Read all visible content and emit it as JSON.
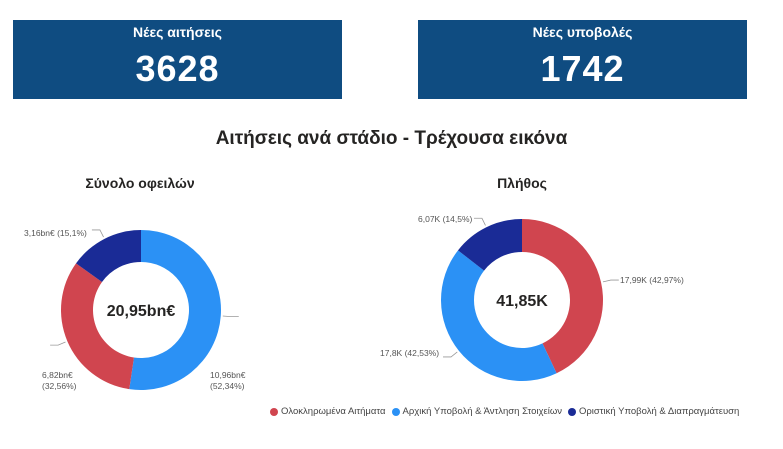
{
  "kpis": {
    "left": {
      "title": "Νέες αιτήσεις",
      "value": "3628"
    },
    "right": {
      "title": "Νέες υποβολές",
      "value": "1742"
    }
  },
  "section_title": "Αιτήσεις ανά στάδιο - Τρέχουσα εικόνα",
  "colors": {
    "kpi_bg": "#0f4c81",
    "completed": "#d0454f",
    "initial": "#2b91f5",
    "final": "#1a2b96"
  },
  "legend": [
    {
      "label": "Ολοκληρωμένα Αιτήματα",
      "color": "#d0454f"
    },
    {
      "label": "Αρχική Υποβολή & Άντληση Στοιχείων",
      "color": "#2b91f5"
    },
    {
      "label": "Οριστική Υποβολή & Διαπραγμάτευση",
      "color": "#1a2b96"
    }
  ],
  "chart_data": [
    {
      "type": "pie",
      "title": "Σύνολο οφειλών",
      "center_label": "20,95bn€",
      "categories": [
        "Ολοκληρωμένα Αιτήματα",
        "Αρχική Υποβολή & Άντληση Στοιχείων",
        "Οριστική Υποβολή & Διαπραγμάτευση"
      ],
      "values": [
        6.82,
        10.96,
        3.16
      ],
      "percents": [
        32.56,
        52.34,
        15.1
      ],
      "labels": [
        "6,82bn€ (32,56%)",
        "10,96bn€ (52,34%)",
        "3,16bn€ (15,1%)"
      ],
      "start": "Αρχική Υποβολή & Άντληση Στοιχείων",
      "order": [
        1,
        0,
        2
      ]
    },
    {
      "type": "pie",
      "title": "Πλήθος",
      "center_label": "41,85K",
      "categories": [
        "Ολοκληρωμένα Αιτήματα",
        "Αρχική Υποβολή & Άντληση Στοιχείων",
        "Οριστική Υποβολή & Διαπραγμάτευση"
      ],
      "values": [
        17.99,
        17.8,
        6.07
      ],
      "percents": [
        42.97,
        42.53,
        14.5
      ],
      "labels": [
        "17,99K (42,97%)",
        "17,8K (42,53%)",
        "6,07K (14,5%)"
      ],
      "order": [
        0,
        1,
        2
      ]
    }
  ]
}
